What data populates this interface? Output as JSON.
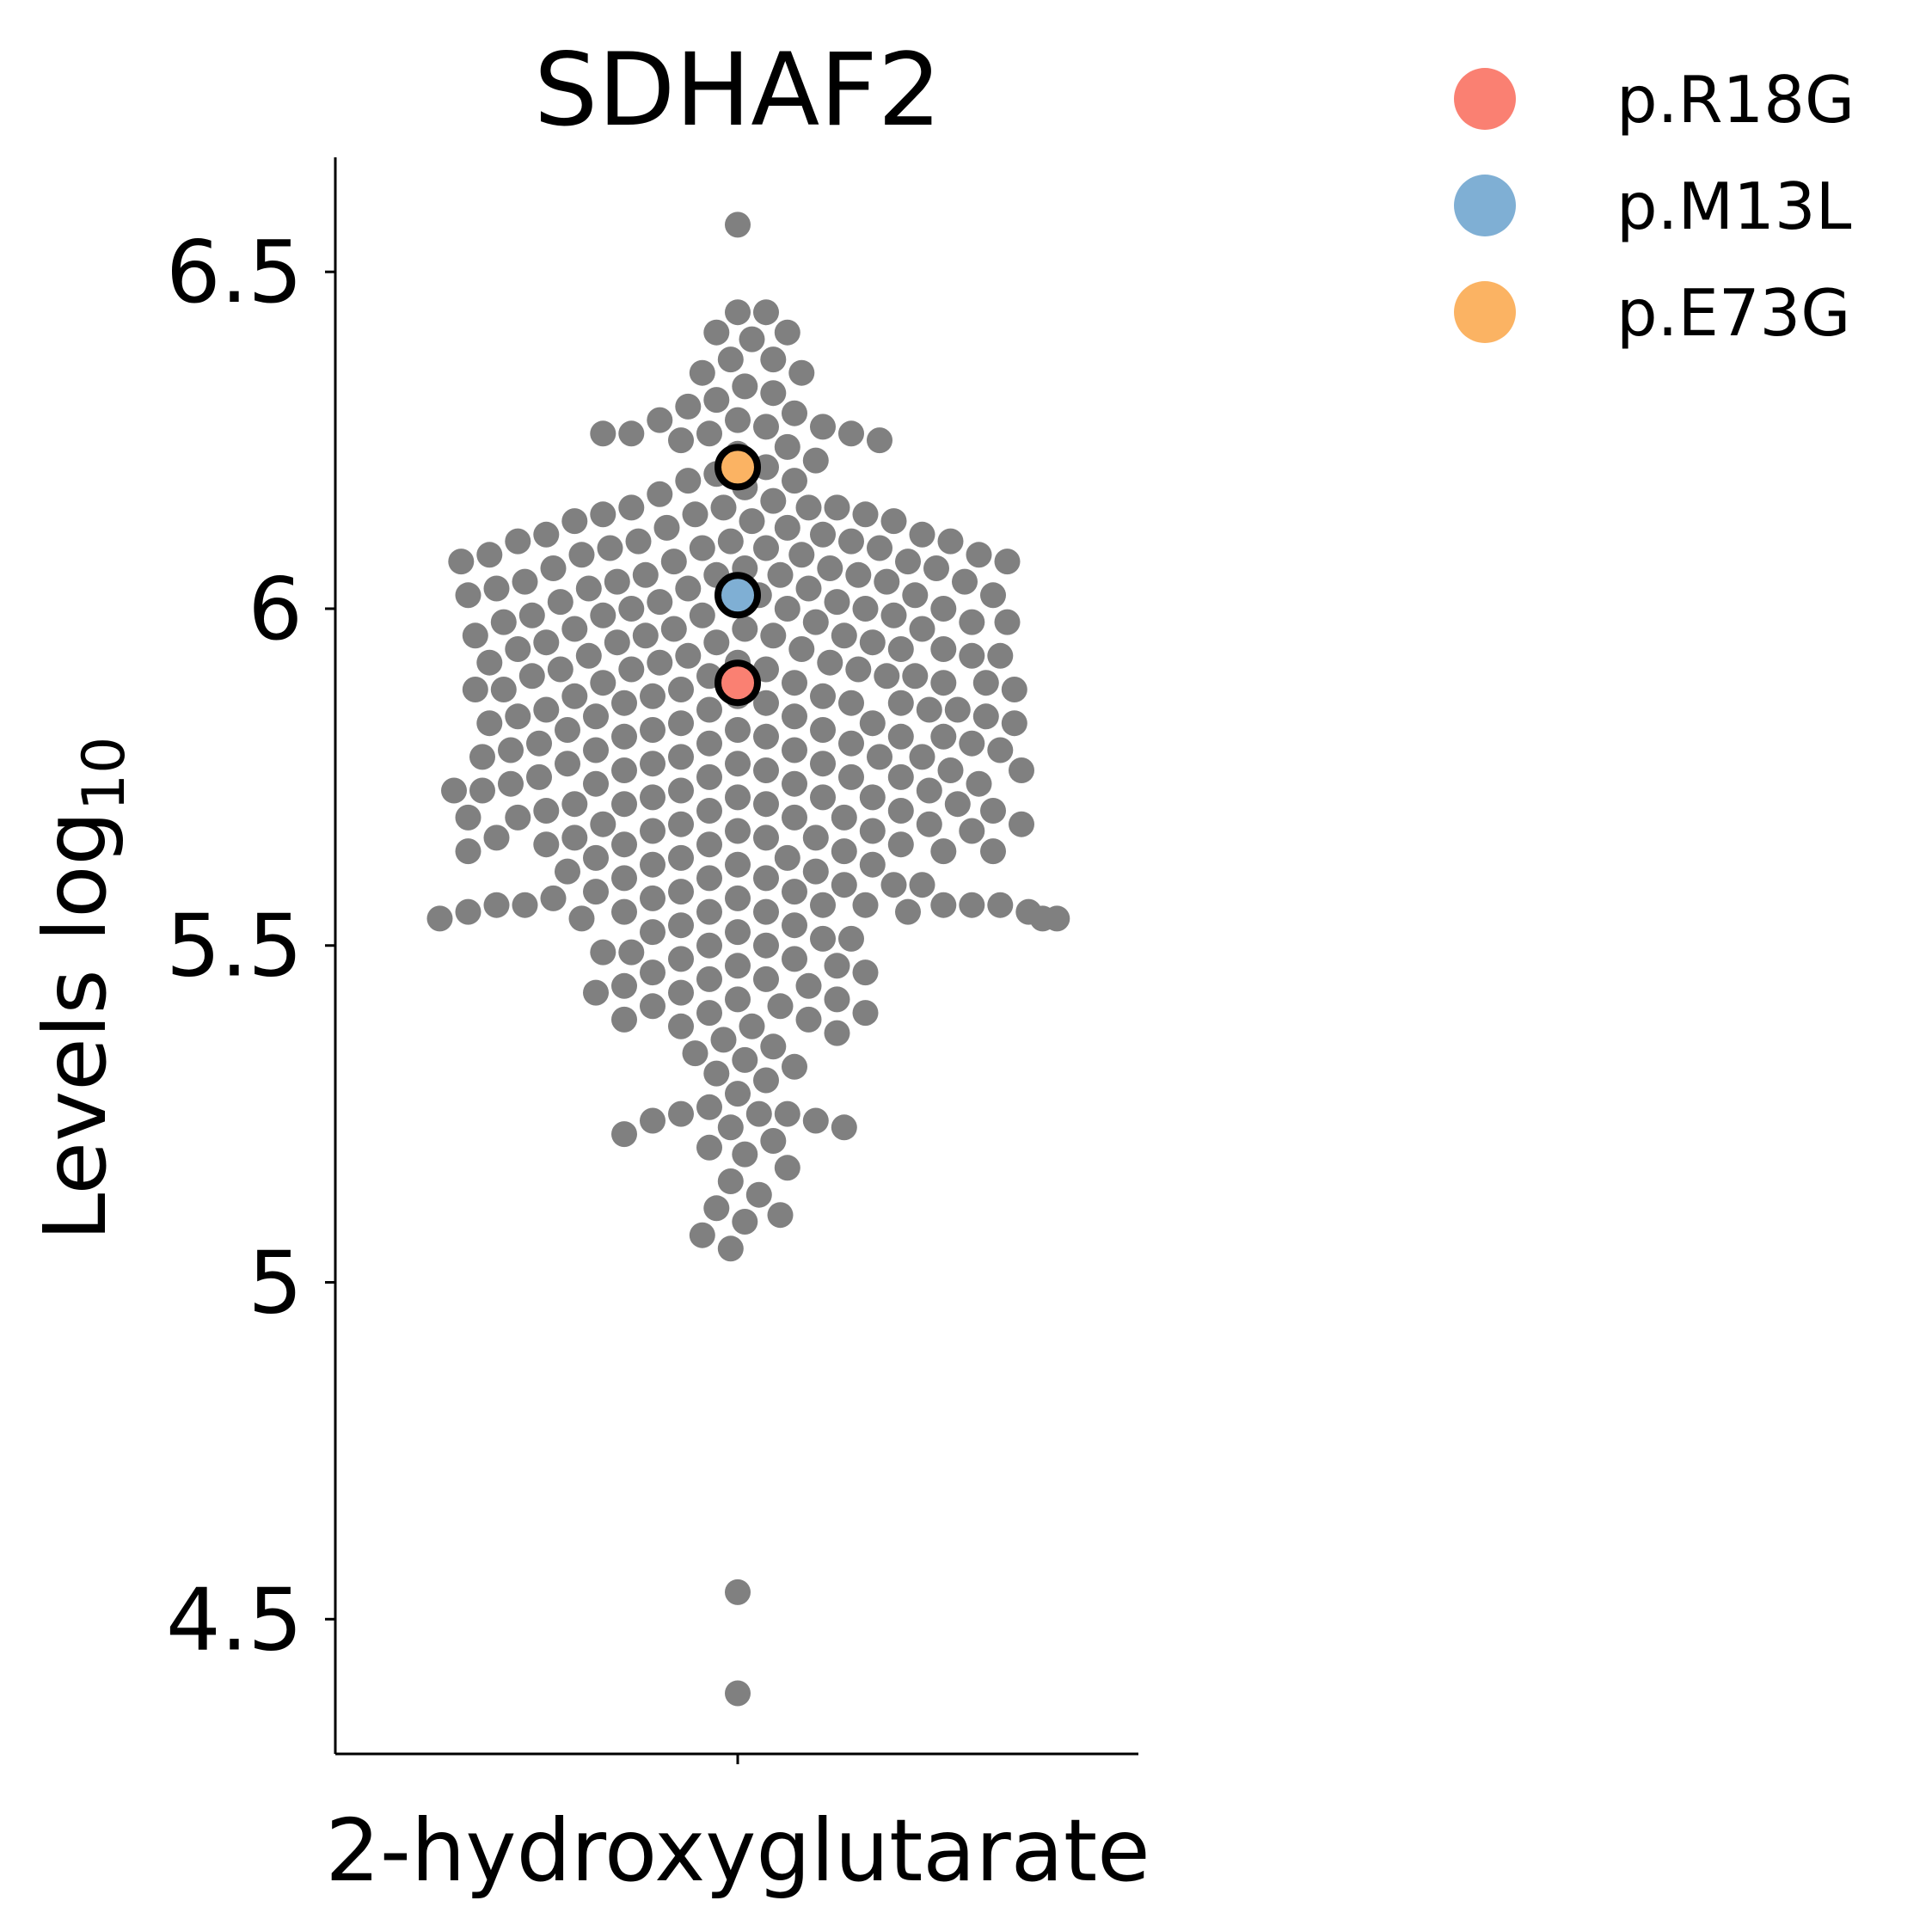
{
  "chart_data": {
    "type": "scatter",
    "subtype": "swarm",
    "title": "SDHAF2",
    "xlabel": "",
    "ylabel": "Levels log",
    "ylabel_subscript": "10",
    "categories": [
      "2-hydroxyglutarate"
    ],
    "yticks": [
      "4.5",
      "5",
      "5.5",
      "6",
      "6.5"
    ],
    "ytick_values": [
      4.5,
      5.0,
      5.5,
      6.0,
      6.5
    ],
    "ylim": [
      4.3,
      6.67
    ],
    "grid": false,
    "legend_position": "top-right outside",
    "background_color": "#808080",
    "population_values": [
      6.57,
      6.44,
      6.44,
      6.41,
      6.41,
      6.4,
      6.37,
      6.37,
      6.35,
      6.35,
      6.33,
      6.32,
      6.31,
      6.3,
      6.29,
      6.28,
      6.28,
      6.27,
      6.27,
      6.26,
      6.26,
      6.26,
      6.26,
      6.25,
      6.25,
      6.24,
      6.23,
      6.22,
      6.21,
      6.2,
      6.19,
      6.19,
      6.18,
      6.17,
      6.16,
      6.15,
      6.15,
      6.15,
      6.15,
      6.14,
      6.14,
      6.14,
      6.13,
      6.13,
      6.13,
      6.12,
      6.12,
      6.11,
      6.11,
      6.11,
      6.1,
      6.1,
      6.1,
      6.1,
      6.1,
      6.09,
      6.09,
      6.09,
      6.09,
      6.08,
      6.08,
      6.08,
      6.08,
      6.07,
      6.07,
      6.07,
      6.07,
      6.06,
      6.06,
      6.06,
      6.06,
      6.05,
      6.05,
      6.05,
      6.05,
      6.04,
      6.04,
      6.04,
      6.04,
      6.03,
      6.03,
      6.03,
      6.03,
      6.02,
      6.02,
      6.02,
      6.02,
      6.01,
      6.01,
      6.01,
      6.01,
      6.0,
      6.0,
      6.0,
      6.0,
      5.99,
      5.99,
      5.99,
      5.99,
      5.98,
      5.98,
      5.98,
      5.98,
      5.97,
      5.97,
      5.97,
      5.97,
      5.96,
      5.96,
      5.96,
      5.96,
      5.95,
      5.95,
      5.95,
      5.95,
      5.94,
      5.94,
      5.94,
      5.94,
      5.93,
      5.93,
      5.93,
      5.93,
      5.92,
      5.92,
      5.92,
      5.92,
      5.91,
      5.91,
      5.91,
      5.91,
      5.9,
      5.9,
      5.9,
      5.9,
      5.89,
      5.89,
      5.89,
      5.89,
      5.88,
      5.88,
      5.88,
      5.88,
      5.87,
      5.87,
      5.87,
      5.87,
      5.86,
      5.86,
      5.86,
      5.86,
      5.85,
      5.85,
      5.85,
      5.85,
      5.84,
      5.84,
      5.84,
      5.84,
      5.83,
      5.83,
      5.83,
      5.83,
      5.82,
      5.82,
      5.82,
      5.82,
      5.81,
      5.81,
      5.81,
      5.81,
      5.8,
      5.8,
      5.8,
      5.8,
      5.79,
      5.79,
      5.79,
      5.79,
      5.78,
      5.78,
      5.78,
      5.78,
      5.77,
      5.77,
      5.77,
      5.77,
      5.76,
      5.76,
      5.76,
      5.76,
      5.75,
      5.75,
      5.75,
      5.75,
      5.74,
      5.74,
      5.74,
      5.74,
      5.73,
      5.73,
      5.73,
      5.73,
      5.72,
      5.72,
      5.72,
      5.72,
      5.71,
      5.71,
      5.71,
      5.71,
      5.7,
      5.7,
      5.7,
      5.7,
      5.69,
      5.69,
      5.69,
      5.69,
      5.68,
      5.68,
      5.68,
      5.68,
      5.67,
      5.67,
      5.67,
      5.67,
      5.66,
      5.66,
      5.66,
      5.66,
      5.65,
      5.65,
      5.65,
      5.65,
      5.64,
      5.64,
      5.64,
      5.64,
      5.63,
      5.63,
      5.63,
      5.62,
      5.62,
      5.62,
      5.61,
      5.61,
      5.6,
      5.6,
      5.6,
      5.59,
      5.59,
      5.59,
      5.58,
      5.58,
      5.58,
      5.57,
      5.57,
      5.57,
      5.56,
      5.56,
      5.56,
      5.56,
      5.56,
      5.56,
      5.56,
      5.55,
      5.55,
      5.55,
      5.55,
      5.55,
      5.55,
      5.54,
      5.54,
      5.54,
      5.54,
      5.53,
      5.53,
      5.52,
      5.52,
      5.51,
      5.51,
      5.5,
      5.5,
      5.49,
      5.49,
      5.48,
      5.48,
      5.47,
      5.47,
      5.46,
      5.46,
      5.45,
      5.45,
      5.44,
      5.44,
      5.43,
      5.43,
      5.42,
      5.42,
      5.41,
      5.41,
      5.4,
      5.4,
      5.39,
      5.39,
      5.38,
      5.38,
      5.37,
      5.36,
      5.35,
      5.34,
      5.33,
      5.32,
      5.31,
      5.3,
      5.28,
      5.26,
      5.25,
      5.25,
      5.25,
      5.24,
      5.24,
      5.23,
      5.23,
      5.22,
      5.21,
      5.2,
      5.19,
      5.17,
      5.15,
      5.13,
      5.11,
      5.1,
      5.09,
      5.07,
      5.05,
      4.54,
      4.39
    ],
    "series": [
      {
        "name": "p.R18G",
        "values": [
          5.89
        ],
        "color": "#FA8072"
      },
      {
        "name": "p.M13L",
        "values": [
          6.02
        ],
        "color": "#7FAFD4"
      },
      {
        "name": "p.E73G",
        "values": [
          6.21
        ],
        "color": "#FBB363"
      }
    ]
  }
}
